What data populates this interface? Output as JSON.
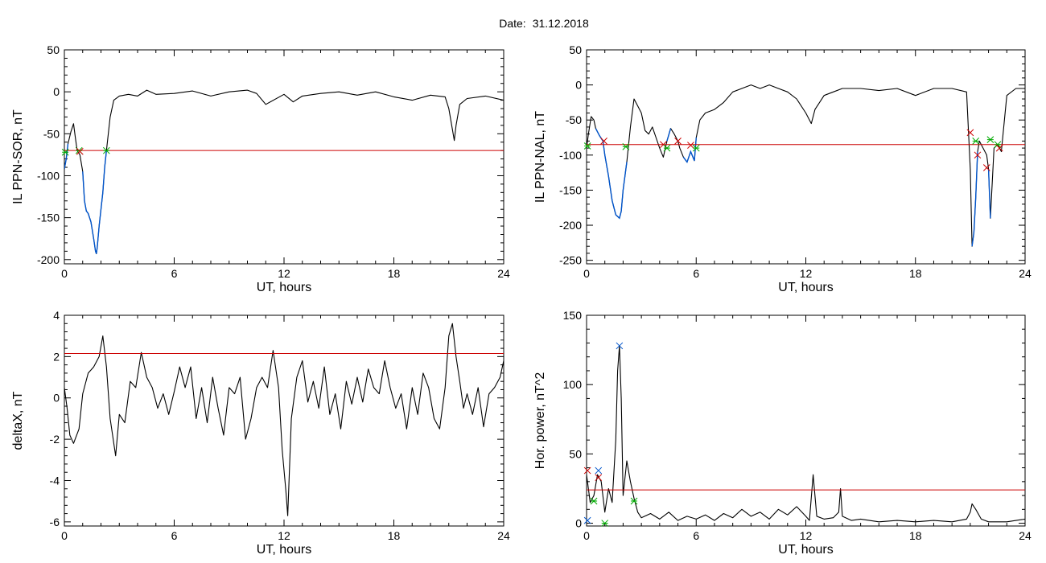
{
  "header": {
    "date_label": "Date:",
    "date_value": "31.12.2018"
  },
  "colors": {
    "line": "#000000",
    "highlight": "#0055cc",
    "threshold": "#cc0000",
    "start_marker": "#00aa00",
    "end_marker": "#cc0000",
    "peak_marker": "#0055cc"
  },
  "chart_data": [
    {
      "type": "line",
      "ylabel": "IL PPN-SOR, nT",
      "xlabel": "UT, hours",
      "xlim": [
        0,
        24
      ],
      "ylim": [
        -205,
        50
      ],
      "xticks": [
        0,
        6,
        12,
        18,
        24
      ],
      "xtick_labels": [
        "0",
        "6",
        "12",
        "18",
        "24"
      ],
      "yticks": [
        -200,
        -150,
        -100,
        -50,
        0,
        50
      ],
      "ytick_labels": [
        "-200",
        "-150",
        "-100",
        "-50",
        "0",
        "50"
      ],
      "threshold": -70,
      "x": [
        0,
        0.1,
        0.2,
        0.35,
        0.5,
        0.6,
        0.7,
        0.85,
        1.0,
        1.1,
        1.2,
        1.3,
        1.45,
        1.6,
        1.7,
        1.75,
        1.8,
        1.9,
        2.0,
        2.1,
        2.2,
        2.3,
        2.4,
        2.5,
        2.7,
        3.0,
        3.5,
        4.0,
        4.5,
        5.0,
        6.0,
        7.0,
        8.0,
        9.0,
        10.0,
        10.5,
        11.0,
        12.0,
        12.5,
        13.0,
        14.0,
        15.0,
        16.0,
        17.0,
        18.0,
        19.0,
        20.0,
        20.8,
        21.0,
        21.2,
        21.3,
        21.4,
        21.6,
        22.0,
        23.0,
        24.0
      ],
      "y": [
        -92,
        -80,
        -62,
        -48,
        -38,
        -55,
        -70,
        -75,
        -95,
        -130,
        -142,
        -145,
        -155,
        -175,
        -190,
        -193,
        -185,
        -160,
        -140,
        -120,
        -90,
        -70,
        -50,
        -30,
        -10,
        -5,
        -3,
        -5,
        2,
        -3,
        -2,
        1,
        -5,
        0,
        2,
        -2,
        -15,
        -3,
        -12,
        -5,
        -2,
        0,
        -4,
        0,
        -6,
        -10,
        -4,
        -6,
        -20,
        -45,
        -58,
        -40,
        -15,
        -8,
        -5,
        -10
      ],
      "highlight_segments": [
        [
          0.0,
          0.3
        ],
        [
          1.0,
          2.35
        ]
      ],
      "markers": [
        {
          "x": 0.05,
          "y": -72,
          "kind": "start"
        },
        {
          "x": 0.8,
          "y": -70,
          "kind": "start"
        },
        {
          "x": 0.85,
          "y": -71,
          "kind": "end"
        },
        {
          "x": 2.3,
          "y": -70,
          "kind": "start"
        }
      ]
    },
    {
      "type": "line",
      "ylabel": "IL PPN-NAL, nT",
      "xlabel": "UT, hours",
      "xlim": [
        0,
        24
      ],
      "ylim": [
        -255,
        50
      ],
      "xticks": [
        0,
        6,
        12,
        18,
        24
      ],
      "xtick_labels": [
        "0",
        "6",
        "12",
        "18",
        "24"
      ],
      "yticks": [
        -250,
        -200,
        -150,
        -100,
        -50,
        0,
        50
      ],
      "ytick_labels": [
        "-250",
        "-200",
        "-150",
        "-100",
        "-50",
        "0",
        "50"
      ],
      "threshold": -85,
      "x": [
        0,
        0.1,
        0.25,
        0.4,
        0.5,
        0.7,
        0.9,
        1.0,
        1.2,
        1.4,
        1.6,
        1.8,
        1.9,
        2.0,
        2.2,
        2.4,
        2.6,
        2.8,
        3.0,
        3.2,
        3.4,
        3.6,
        3.8,
        4.0,
        4.2,
        4.4,
        4.6,
        4.8,
        5.0,
        5.1,
        5.3,
        5.5,
        5.7,
        5.9,
        6.0,
        6.2,
        6.5,
        7.0,
        7.5,
        8.0,
        8.5,
        9.0,
        9.5,
        10.0,
        10.5,
        11.0,
        11.5,
        12.0,
        12.3,
        12.5,
        13.0,
        13.5,
        14.0,
        15.0,
        16.0,
        17.0,
        18.0,
        19.0,
        20.0,
        20.8,
        21.0,
        21.1,
        21.2,
        21.3,
        21.4,
        21.5,
        21.7,
        21.9,
        22.0,
        22.1,
        22.3,
        22.5,
        22.7,
        23.0,
        23.5,
        24.0
      ],
      "y": [
        -90,
        -70,
        -45,
        -50,
        -62,
        -72,
        -80,
        -100,
        -130,
        -165,
        -185,
        -190,
        -180,
        -150,
        -110,
        -60,
        -20,
        -30,
        -40,
        -65,
        -70,
        -60,
        -75,
        -90,
        -103,
        -80,
        -62,
        -70,
        -80,
        -90,
        -103,
        -110,
        -95,
        -108,
        -75,
        -50,
        -40,
        -35,
        -25,
        -10,
        -5,
        0,
        -5,
        0,
        -5,
        -10,
        -20,
        -40,
        -55,
        -35,
        -15,
        -10,
        -5,
        -5,
        -8,
        -5,
        -15,
        -5,
        -5,
        -10,
        -120,
        -230,
        -210,
        -160,
        -95,
        -80,
        -90,
        -100,
        -120,
        -190,
        -90,
        -85,
        -95,
        -15,
        -5,
        -5
      ],
      "highlight_segments": [
        [
          0.5,
          2.2
        ],
        [
          4.4,
          4.7
        ],
        [
          5.2,
          6.1
        ],
        [
          21.1,
          21.4
        ],
        [
          22.0,
          22.1
        ]
      ],
      "markers": [
        {
          "x": 0.05,
          "y": -87,
          "kind": "start"
        },
        {
          "x": 0.95,
          "y": -80,
          "kind": "end"
        },
        {
          "x": 2.15,
          "y": -88,
          "kind": "start"
        },
        {
          "x": 4.2,
          "y": -85,
          "kind": "end"
        },
        {
          "x": 4.4,
          "y": -90,
          "kind": "start"
        },
        {
          "x": 5.0,
          "y": -80,
          "kind": "end"
        },
        {
          "x": 5.7,
          "y": -86,
          "kind": "end"
        },
        {
          "x": 6.0,
          "y": -90,
          "kind": "start"
        },
        {
          "x": 21.0,
          "y": -68,
          "kind": "end"
        },
        {
          "x": 21.3,
          "y": -80,
          "kind": "start"
        },
        {
          "x": 21.4,
          "y": -100,
          "kind": "end"
        },
        {
          "x": 21.9,
          "y": -118,
          "kind": "end"
        },
        {
          "x": 22.1,
          "y": -78,
          "kind": "start"
        },
        {
          "x": 22.5,
          "y": -85,
          "kind": "start"
        },
        {
          "x": 22.6,
          "y": -90,
          "kind": "end"
        }
      ]
    },
    {
      "type": "line",
      "ylabel": "deltaX, nT",
      "xlabel": "UT, hours",
      "xlim": [
        0,
        24
      ],
      "ylim": [
        -6.2,
        4.0
      ],
      "xticks": [
        0,
        6,
        12,
        18,
        24
      ],
      "xtick_labels": [
        "0",
        "6",
        "12",
        "18",
        "24"
      ],
      "yticks": [
        -6,
        -4,
        -2,
        0,
        2,
        4
      ],
      "ytick_labels": [
        "-6",
        "-4",
        "-2",
        "0",
        "2",
        "4"
      ],
      "threshold": 2.15,
      "x": [
        0,
        0.15,
        0.3,
        0.5,
        0.8,
        1.0,
        1.3,
        1.6,
        1.9,
        2.1,
        2.3,
        2.5,
        2.8,
        3.0,
        3.3,
        3.6,
        3.9,
        4.2,
        4.5,
        4.8,
        5.1,
        5.4,
        5.7,
        6.0,
        6.3,
        6.6,
        6.9,
        7.2,
        7.5,
        7.8,
        8.1,
        8.4,
        8.7,
        9.0,
        9.3,
        9.6,
        9.9,
        10.2,
        10.5,
        10.8,
        11.1,
        11.4,
        11.7,
        11.9,
        12.1,
        12.2,
        12.4,
        12.7,
        13.0,
        13.3,
        13.6,
        13.9,
        14.2,
        14.5,
        14.8,
        15.1,
        15.4,
        15.7,
        16.0,
        16.3,
        16.6,
        16.9,
        17.2,
        17.5,
        17.8,
        18.1,
        18.4,
        18.7,
        19.0,
        19.3,
        19.6,
        19.9,
        20.2,
        20.5,
        20.8,
        21.0,
        21.2,
        21.4,
        21.6,
        21.8,
        22.0,
        22.3,
        22.6,
        22.9,
        23.2,
        23.5,
        23.8,
        24.0
      ],
      "y": [
        0.5,
        -0.5,
        -1.8,
        -2.2,
        -1.5,
        0.2,
        1.2,
        1.5,
        2.0,
        3.0,
        1.5,
        -1.0,
        -2.8,
        -0.8,
        -1.2,
        0.8,
        0.5,
        2.2,
        1.0,
        0.5,
        -0.5,
        0.2,
        -0.8,
        0.3,
        1.5,
        0.5,
        1.5,
        -1.0,
        0.5,
        -1.2,
        1.0,
        -0.5,
        -1.8,
        0.5,
        0.2,
        1.0,
        -2.0,
        -1.0,
        0.5,
        1.0,
        0.5,
        2.3,
        0.5,
        -2.5,
        -4.5,
        -5.7,
        -1.0,
        1.0,
        1.8,
        -0.2,
        0.8,
        -0.5,
        1.5,
        -0.8,
        0.2,
        -1.5,
        0.8,
        -0.3,
        1.0,
        -0.2,
        1.4,
        0.5,
        0.2,
        1.8,
        0.5,
        -0.5,
        0.2,
        -1.5,
        0.5,
        -0.8,
        1.2,
        0.5,
        -1.0,
        -1.5,
        0.5,
        3.0,
        3.6,
        2.0,
        0.8,
        -0.5,
        0.2,
        -0.8,
        0.5,
        -1.4,
        0.2,
        0.5,
        1.0,
        1.8
      ]
    },
    {
      "type": "line",
      "ylabel": "Hor. power, nT^2",
      "xlabel": "UT, hours",
      "xlim": [
        0,
        24
      ],
      "ylim": [
        -2,
        150
      ],
      "xticks": [
        0,
        6,
        12,
        18,
        24
      ],
      "xtick_labels": [
        "0",
        "6",
        "12",
        "18",
        "24"
      ],
      "yticks": [
        0,
        50,
        100,
        150
      ],
      "ytick_labels": [
        "0",
        "50",
        "100",
        "150"
      ],
      "threshold": 24,
      "x": [
        0,
        0.2,
        0.4,
        0.6,
        0.8,
        1.0,
        1.2,
        1.4,
        1.6,
        1.7,
        1.8,
        1.9,
        2.0,
        2.2,
        2.4,
        2.6,
        2.8,
        3.0,
        3.5,
        4.0,
        4.5,
        5.0,
        5.5,
        6.0,
        6.5,
        7.0,
        7.5,
        8.0,
        8.5,
        9.0,
        9.5,
        10.0,
        10.5,
        11.0,
        11.5,
        12.0,
        12.2,
        12.4,
        12.6,
        13.0,
        13.5,
        13.8,
        13.9,
        14.0,
        14.5,
        15.0,
        16.0,
        17.0,
        18.0,
        19.0,
        20.0,
        20.8,
        21.0,
        21.1,
        21.3,
        21.6,
        22.0,
        23.0,
        24.0
      ],
      "y": [
        35,
        15,
        20,
        35,
        30,
        8,
        25,
        15,
        60,
        110,
        128,
        90,
        20,
        45,
        30,
        18,
        8,
        4,
        7,
        3,
        8,
        2,
        5,
        3,
        6,
        2,
        7,
        4,
        10,
        5,
        8,
        3,
        10,
        6,
        12,
        5,
        2,
        35,
        5,
        3,
        4,
        8,
        25,
        5,
        2,
        3,
        1,
        2,
        1,
        2,
        1,
        3,
        8,
        14,
        10,
        3,
        1,
        1,
        3
      ],
      "markers": [
        {
          "x": 0.05,
          "y": 38,
          "kind": "end"
        },
        {
          "x": 0.05,
          "y": 2,
          "kind": "peak"
        },
        {
          "x": 0.4,
          "y": 16,
          "kind": "start"
        },
        {
          "x": 0.65,
          "y": 33,
          "kind": "end"
        },
        {
          "x": 0.65,
          "y": 38,
          "kind": "peak"
        },
        {
          "x": 1.0,
          "y": 0,
          "kind": "start"
        },
        {
          "x": 1.8,
          "y": 128,
          "kind": "peak"
        },
        {
          "x": 2.6,
          "y": 16,
          "kind": "start"
        }
      ]
    }
  ]
}
